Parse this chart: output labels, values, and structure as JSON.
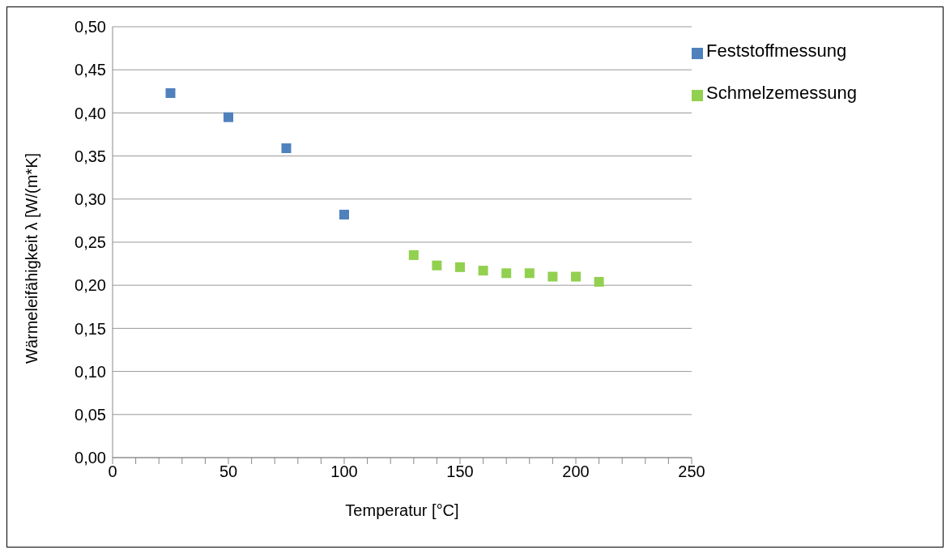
{
  "chart_data": {
    "type": "scatter",
    "xlabel": "Temperatur [°C]",
    "ylabel": "Wärmeleifähigkeit λ  [W/(m*K]",
    "xlim": [
      0,
      250
    ],
    "xticks": [
      0,
      {
        "value": 10,
        "label": null
      },
      {
        "value": 20,
        "label": null
      },
      {
        "value": 30,
        "label": null
      },
      {
        "value": 40,
        "label": null
      },
      50,
      {
        "value": 60,
        "label": null
      },
      {
        "value": 70,
        "label": null
      },
      {
        "value": 80,
        "label": null
      },
      {
        "value": 90,
        "label": null
      },
      100,
      {
        "value": 110,
        "label": null
      },
      {
        "value": 120,
        "label": null
      },
      {
        "value": 130,
        "label": null
      },
      {
        "value": 140,
        "label": null
      },
      150,
      {
        "value": 160,
        "label": null
      },
      {
        "value": 170,
        "label": null
      },
      {
        "value": 180,
        "label": null
      },
      {
        "value": 190,
        "label": null
      },
      200,
      {
        "value": 210,
        "label": null
      },
      {
        "value": 220,
        "label": null
      },
      {
        "value": 230,
        "label": null
      },
      {
        "value": 240,
        "label": null
      },
      250
    ],
    "ylim": [
      0,
      0.5
    ],
    "yticks": [
      {
        "value": 0,
        "label": "0,00"
      },
      {
        "value": 0.05,
        "label": "0,05"
      },
      {
        "value": 0.1,
        "label": "0,10"
      },
      {
        "value": 0.15,
        "label": "0,15"
      },
      {
        "value": 0.2,
        "label": "0,20"
      },
      {
        "value": 0.25,
        "label": "0,25"
      },
      {
        "value": 0.3,
        "label": "0,30"
      },
      {
        "value": 0.35,
        "label": "0,35"
      },
      {
        "value": 0.4,
        "label": "0,40"
      },
      {
        "value": 0.45,
        "label": "0,45"
      },
      {
        "value": 0.5,
        "label": "0,50"
      }
    ],
    "grid": "y",
    "legend": "top right",
    "marker": "square",
    "series": [
      {
        "name": "Feststoffmessung",
        "color": "#4f81bd",
        "x": [
          25,
          50,
          75,
          100
        ],
        "values": [
          0.423,
          0.395,
          0.359,
          0.282
        ]
      },
      {
        "name": "Schmelzemessung",
        "color": "#92d050",
        "x": [
          130,
          140,
          150,
          160,
          170,
          180,
          190,
          200,
          210
        ],
        "values": [
          0.235,
          0.223,
          0.221,
          0.217,
          0.214,
          0.214,
          0.21,
          0.21,
          0.204
        ]
      }
    ]
  }
}
